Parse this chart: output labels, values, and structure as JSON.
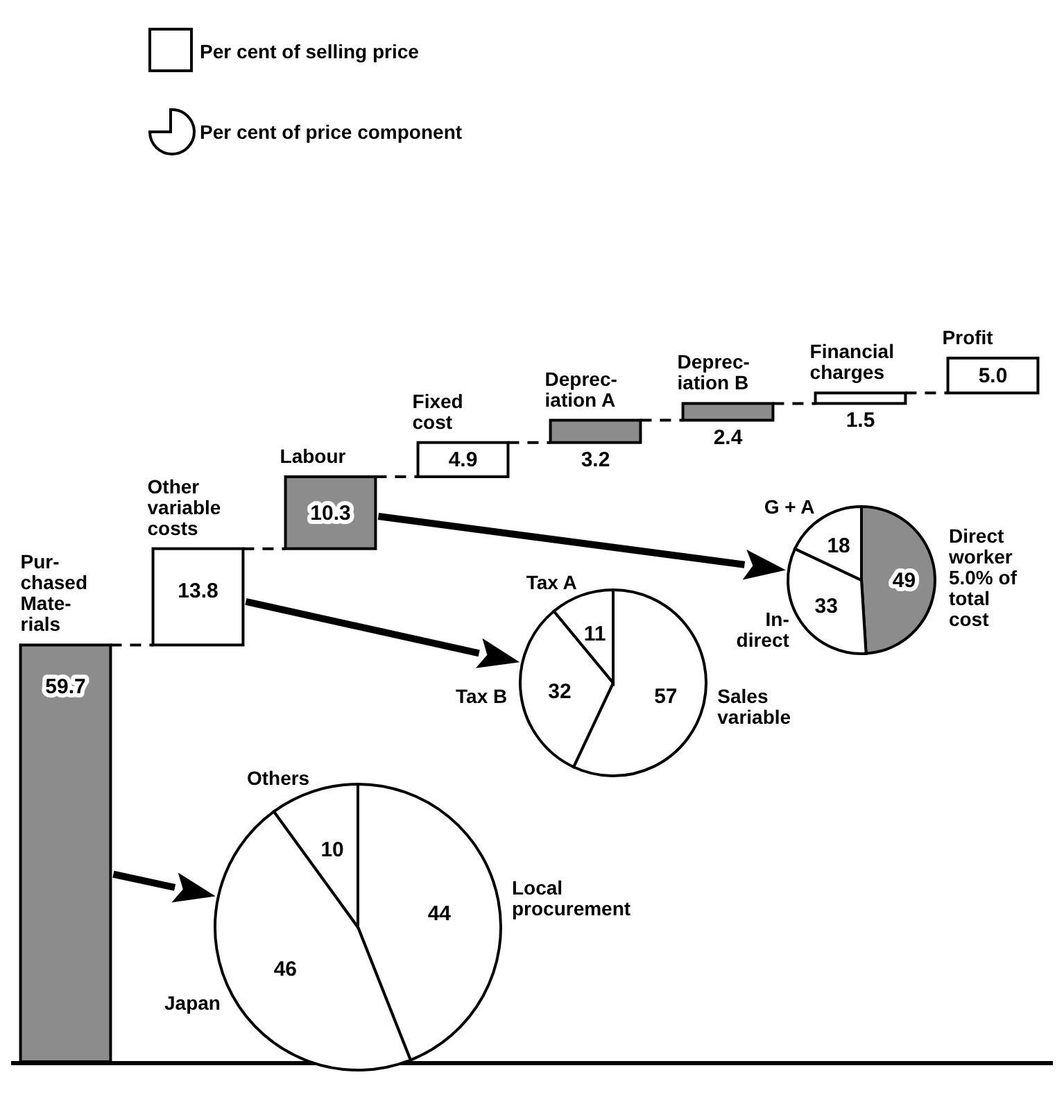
{
  "chart_data": [
    {
      "type": "other",
      "categories": [
        "Pur-\nchased\nMate-\nrials",
        "Other\nvariable\ncosts",
        "Labour",
        "Fixed\ncost",
        "Deprec-\niation A",
        "Deprec-\niation B",
        "Financial\ncharges",
        "Profit"
      ],
      "values": [
        59.7,
        13.8,
        10.3,
        4.9,
        3.2,
        2.4,
        1.5,
        5.0
      ],
      "value_labels": [
        "59.7",
        "13.8",
        "10.3",
        "4.9",
        "3.2",
        "2.4",
        "1.5",
        "5.0"
      ],
      "colors": [
        "#8c8c8c",
        "#ffffff",
        "#8c8c8c",
        "#ffffff",
        "#8c8c8c",
        "#8c8c8c",
        "#ffffff",
        "#ffffff"
      ],
      "annotations": [
        "Per cent of selling price",
        "Per cent of price component"
      ]
    },
    {
      "type": "pie",
      "categories": [
        "Local\nprocurement",
        "Japan",
        "Others"
      ],
      "values": [
        44,
        46,
        10
      ],
      "colors": [
        "#ffffff",
        "#ffffff",
        "#ffffff"
      ],
      "data_labels": true
    },
    {
      "type": "pie",
      "categories": [
        "Sales\nvariable",
        "Tax B",
        "Tax A"
      ],
      "values": [
        57,
        32,
        11
      ],
      "colors": [
        "#ffffff",
        "#ffffff",
        "#ffffff"
      ],
      "data_labels": true
    },
    {
      "type": "pie",
      "categories": [
        "Direct\nworker\n5.0% of\ntotal\ncost",
        "In-\ndirect",
        "G + A"
      ],
      "values": [
        49,
        33,
        18
      ],
      "colors": [
        "#8c8c8c",
        "#ffffff",
        "#ffffff"
      ],
      "data_labels": true
    }
  ]
}
